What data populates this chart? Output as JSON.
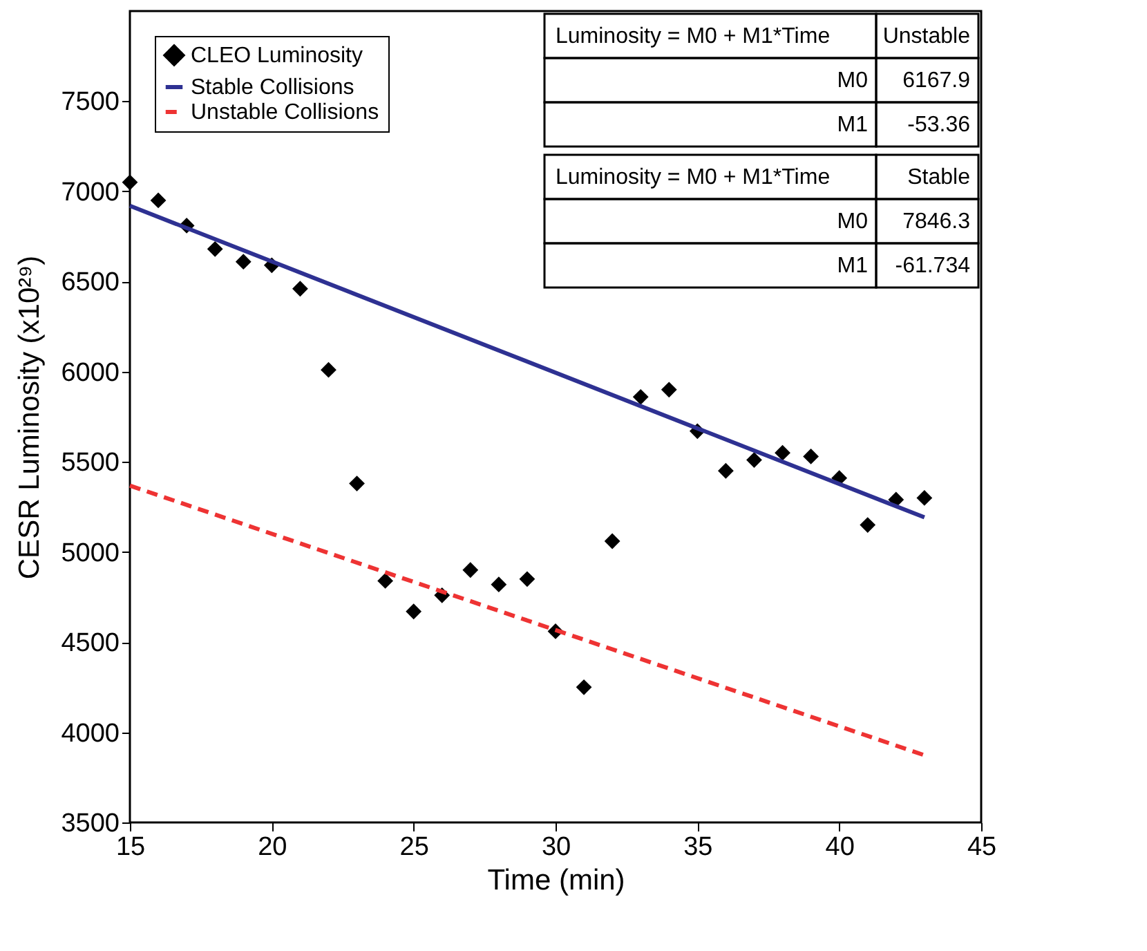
{
  "chart_data": {
    "type": "scatter",
    "xlabel": "Time (min)",
    "ylabel": "CESR Luminosity (x10²⁹)",
    "xlim": [
      15,
      45
    ],
    "xticks": [
      15,
      20,
      25,
      30,
      35,
      40,
      45
    ],
    "ylim": [
      3500,
      8000
    ],
    "yticks": [
      3500,
      4000,
      4500,
      5000,
      5500,
      6000,
      6500,
      7000,
      7500
    ],
    "grid": false,
    "legend": "top left",
    "series": [
      {
        "name": "CLEO Luminosity",
        "marker": "diamond",
        "color": "#000000",
        "x": [
          15,
          16,
          17,
          18,
          19,
          20,
          21,
          22,
          23,
          24,
          25,
          26,
          27,
          28,
          29,
          30,
          31,
          32,
          33,
          34,
          35,
          36,
          37,
          38,
          39,
          40,
          41,
          42,
          43
        ],
        "values": [
          7050,
          6950,
          6810,
          6680,
          6610,
          6590,
          6460,
          6010,
          5380,
          4840,
          4670,
          4760,
          4900,
          4820,
          4850,
          4560,
          4250,
          5060,
          5860,
          5900,
          5670,
          5450,
          5510,
          5550,
          5530,
          5410,
          5150,
          5290,
          5300
        ]
      },
      {
        "name": "Stable Collisions",
        "type": "line",
        "line_style": "solid",
        "color": "#2e3192",
        "x": [
          15,
          43
        ],
        "values": [
          6920,
          5192
        ]
      },
      {
        "name": "Unstable Collisions",
        "type": "line",
        "line_style": "dashed",
        "color": "#ee3333",
        "x": [
          15,
          43
        ],
        "values": [
          5368,
          3873
        ]
      }
    ],
    "annotations": [
      "Luminosity = M0 + M1*Time",
      "Unstable",
      "M0",
      "6167.9",
      "M1",
      "-53.36",
      "Luminosity = M0 + M1*Time",
      "Stable",
      "M0",
      "7846.3",
      "M1",
      "-61.734"
    ]
  }
}
